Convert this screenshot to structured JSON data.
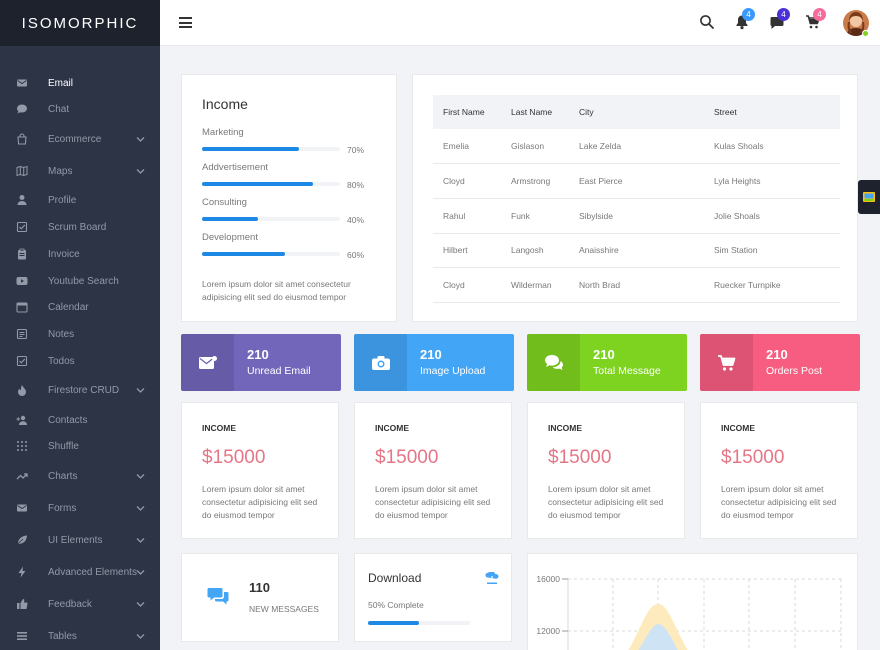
{
  "app": {
    "logo": "ISOMORPHIC"
  },
  "sidebar": {
    "items": [
      {
        "label": "Email",
        "icon": "envelope-icon",
        "expandable": false
      },
      {
        "label": "Chat",
        "icon": "chat-bubble-icon",
        "expandable": false
      },
      {
        "label": "Ecommerce",
        "icon": "shopping-bag-icon",
        "expandable": true
      },
      {
        "label": "Maps",
        "icon": "map-icon",
        "expandable": true
      },
      {
        "label": "Profile",
        "icon": "person-icon",
        "expandable": false
      },
      {
        "label": "Scrum Board",
        "icon": "checkbox-icon",
        "expandable": false
      },
      {
        "label": "Invoice",
        "icon": "clipboard-icon",
        "expandable": false
      },
      {
        "label": "Youtube Search",
        "icon": "youtube-icon",
        "expandable": false
      },
      {
        "label": "Calendar",
        "icon": "calendar-icon",
        "expandable": false
      },
      {
        "label": "Notes",
        "icon": "note-icon",
        "expandable": false
      },
      {
        "label": "Todos",
        "icon": "checkbox-icon",
        "expandable": false
      },
      {
        "label": "Firestore CRUD",
        "icon": "flame-icon",
        "expandable": true
      },
      {
        "label": "Contacts",
        "icon": "add-person-icon",
        "expandable": false
      },
      {
        "label": "Shuffle",
        "icon": "grid-dots-icon",
        "expandable": false
      },
      {
        "label": "Charts",
        "icon": "trending-icon",
        "expandable": true
      },
      {
        "label": "Forms",
        "icon": "mail-icon",
        "expandable": true
      },
      {
        "label": "UI Elements",
        "icon": "leaf-icon",
        "expandable": true
      },
      {
        "label": "Advanced Elements",
        "icon": "bolt-icon",
        "expandable": true
      },
      {
        "label": "Feedback",
        "icon": "thumbs-up-icon",
        "expandable": true
      },
      {
        "label": "Tables",
        "icon": "list-icon",
        "expandable": true
      }
    ]
  },
  "topbar": {
    "notifications_count": "4",
    "messages_count": "4",
    "cart_count": "4",
    "colors": {
      "notifications": "#3a99ff",
      "messages": "#4d2fd9",
      "cart": "#f46b9c"
    }
  },
  "income": {
    "title": "Income",
    "items": [
      {
        "label": "Marketing",
        "percent": 70,
        "percent_text": "70%"
      },
      {
        "label": "Addvertisement",
        "percent": 80,
        "percent_text": "80%"
      },
      {
        "label": "Consulting",
        "percent": 40,
        "percent_text": "40%"
      },
      {
        "label": "Development",
        "percent": 60,
        "percent_text": "60%"
      }
    ],
    "text": "Lorem ipsum dolor sit amet consectetur adipisicing elit sed do eiusmod tempor"
  },
  "table": {
    "headers": [
      "First Name",
      "Last Name",
      "City",
      "Street"
    ],
    "rows": [
      [
        "Emelia",
        "Gislason",
        "Lake Zelda",
        "Kulas Shoals"
      ],
      [
        "Cloyd",
        "Armstrong",
        "East Pierce",
        "Lyla Heights"
      ],
      [
        "Rahul",
        "Funk",
        "Sibylside",
        "Jolie Shoals"
      ],
      [
        "Hilbert",
        "Langosh",
        "Anaisshire",
        "Sim Station"
      ],
      [
        "Cloyd",
        "Wilderman",
        "North Brad",
        "Ruecker Turnpike"
      ]
    ]
  },
  "stickers": [
    {
      "number": "210",
      "text": "Unread Email",
      "color": "#7266ba",
      "icon": "mail-icon"
    },
    {
      "number": "210",
      "text": "Image Upload",
      "color": "#42a5f6",
      "icon": "camera-icon"
    },
    {
      "number": "210",
      "text": "Total Message",
      "color": "#7ed320",
      "icon": "chat-icon"
    },
    {
      "number": "210",
      "text": "Orders Post",
      "color": "#f75d81",
      "icon": "cart-icon"
    }
  ],
  "reports": [
    {
      "title": "INCOME",
      "amount": "$15000",
      "text": "Lorem ipsum dolor sit amet consectetur adipisicing elit sed do eiusmod tempor"
    },
    {
      "title": "INCOME",
      "amount": "$15000",
      "text": "Lorem ipsum dolor sit amet consectetur adipisicing elit sed do eiusmod tempor"
    },
    {
      "title": "INCOME",
      "amount": "$15000",
      "text": "Lorem ipsum dolor sit amet consectetur adipisicing elit sed do eiusmod tempor"
    },
    {
      "title": "INCOME",
      "amount": "$15000",
      "text": "Lorem ipsum dolor sit amet consectetur adipisicing elit sed do eiusmod tempor"
    }
  ],
  "messages_widget": {
    "number": "110",
    "text": "NEW MESSAGES",
    "icon": "chat-icon"
  },
  "download_widget": {
    "title": "Download",
    "subtitle": "50% Complete",
    "percent": 50,
    "icon": "download-icon"
  },
  "chart_preview": {
    "y_ticks": [
      "16000",
      "12000"
    ]
  }
}
